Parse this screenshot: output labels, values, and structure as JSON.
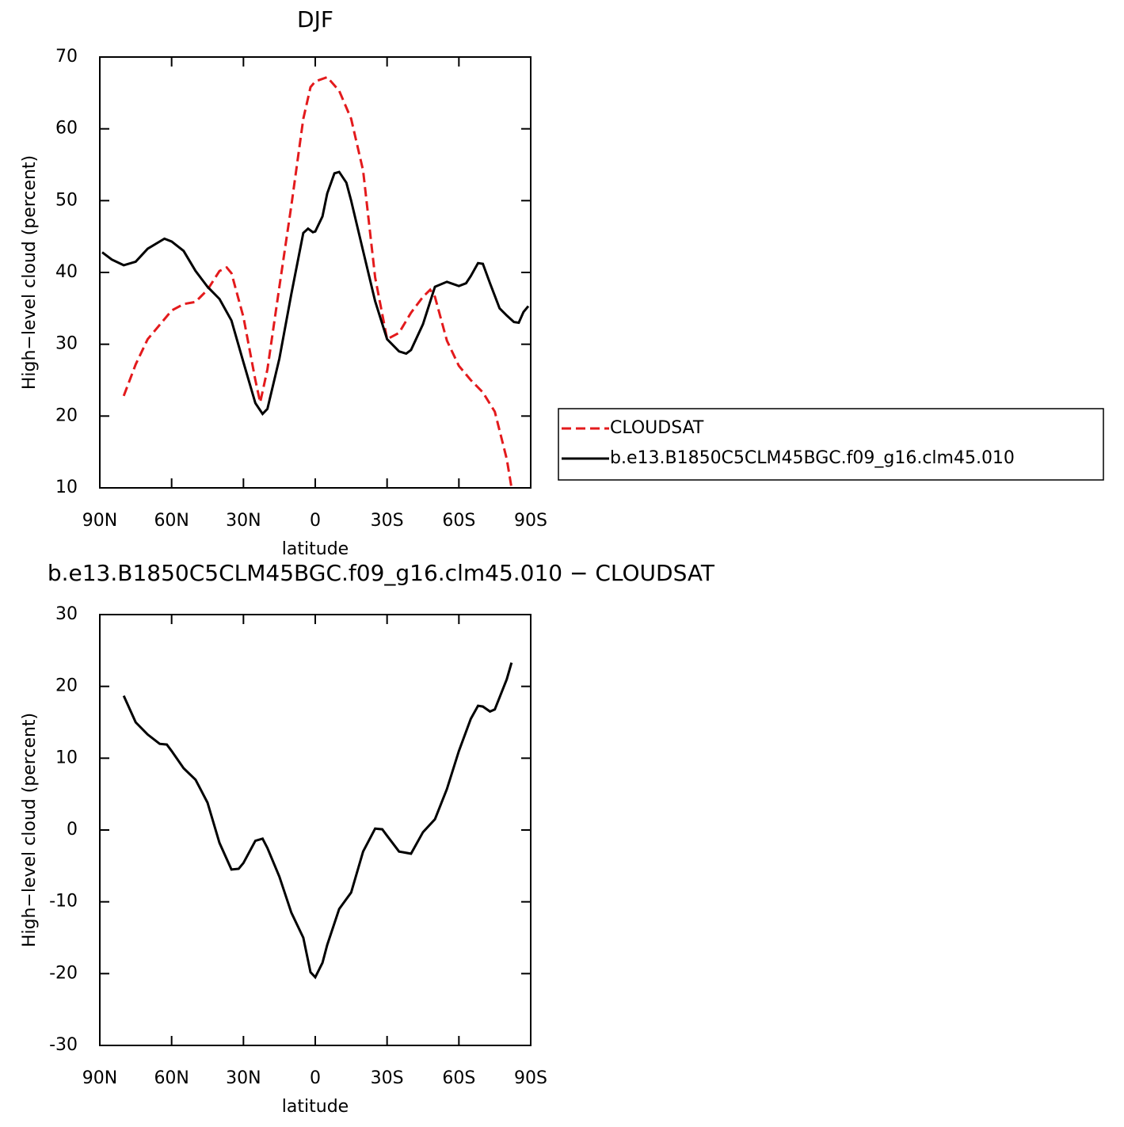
{
  "chart_data": [
    {
      "type": "line",
      "title": "DJF",
      "xlabel": "latitude",
      "ylabel": "High−level cloud (percent)",
      "xlim": [
        90,
        -90
      ],
      "xticks": [
        {
          "value": 90,
          "label": "90N"
        },
        {
          "value": 60,
          "label": "60N"
        },
        {
          "value": 30,
          "label": "30N"
        },
        0,
        {
          "value": -30,
          "label": "30S"
        },
        {
          "value": -60,
          "label": "60S"
        },
        {
          "value": -90,
          "label": "90S"
        }
      ],
      "ylim": [
        10,
        70
      ],
      "yticks": [
        10,
        20,
        30,
        40,
        50,
        60,
        70
      ],
      "series": [
        {
          "name": "CLOUDSAT",
          "color": "#e31a1c",
          "dash": true,
          "x": [
            80,
            75,
            70,
            65,
            60,
            55,
            50,
            45,
            40,
            37,
            35,
            30,
            25,
            23,
            20,
            15,
            10,
            5,
            2,
            0,
            -5,
            -10,
            -15,
            -20,
            -25,
            -30,
            -35,
            -40,
            -45,
            -48,
            -50,
            -55,
            -60,
            -65,
            -70,
            -75,
            -80,
            -82
          ],
          "values": [
            22.8,
            27.2,
            30.7,
            32.7,
            34.7,
            35.6,
            35.9,
            37.6,
            40.2,
            40.7,
            39.9,
            33.8,
            25.0,
            21.9,
            26.5,
            38.0,
            49.3,
            61.4,
            65.8,
            66.6,
            67.2,
            65.3,
            61.4,
            54.2,
            39.3,
            30.7,
            31.6,
            34.4,
            36.6,
            37.6,
            36.6,
            30.5,
            27.0,
            25.0,
            23.3,
            20.6,
            14.0,
            10.0
          ]
        },
        {
          "name": "b.e13.B1850C5CLM45BGC.f09_g16.clm45.010",
          "color": "#000000",
          "dash": false,
          "x": [
            89,
            85,
            80,
            75,
            70,
            63,
            60,
            55,
            50,
            45,
            40,
            35,
            30,
            25,
            22,
            20,
            15,
            10,
            5,
            3,
            1,
            0,
            -3,
            -5,
            -8,
            -10,
            -13,
            -15,
            -20,
            -25,
            -30,
            -35,
            -38,
            -40,
            -45,
            -50,
            -55,
            -60,
            -63,
            -65,
            -68,
            -70,
            -73,
            -77,
            -80,
            -83,
            -85,
            -87,
            -89
          ],
          "values": [
            42.8,
            41.8,
            41.0,
            41.5,
            43.3,
            44.7,
            44.3,
            43.0,
            40.2,
            38.0,
            36.3,
            33.3,
            27.5,
            21.8,
            20.3,
            21.0,
            28.0,
            37.0,
            45.5,
            46.1,
            45.6,
            45.7,
            47.8,
            51.0,
            53.8,
            54.0,
            52.5,
            50.0,
            43.0,
            36.0,
            30.7,
            29.0,
            28.7,
            29.2,
            32.8,
            38.0,
            38.7,
            38.1,
            38.5,
            39.5,
            41.3,
            41.2,
            38.5,
            35.0,
            34.0,
            33.1,
            33.0,
            34.5,
            35.3
          ]
        }
      ]
    },
    {
      "type": "line",
      "title": "b.e13.B1850C5CLM45BGC.f09_g16.clm45.010 − CLOUDSAT",
      "xlabel": "latitude",
      "ylabel": "High−level cloud (percent)",
      "xlim": [
        90,
        -90
      ],
      "xticks": [
        {
          "value": 90,
          "label": "90N"
        },
        {
          "value": 60,
          "label": "60N"
        },
        {
          "value": 30,
          "label": "30N"
        },
        0,
        {
          "value": -30,
          "label": "30S"
        },
        {
          "value": -60,
          "label": "60S"
        },
        {
          "value": -90,
          "label": "90S"
        }
      ],
      "ylim": [
        -30,
        30
      ],
      "yticks": [
        -30,
        -20,
        -10,
        0,
        10,
        20,
        30
      ],
      "series": [
        {
          "color": "#000000",
          "dash": false,
          "x": [
            80,
            75,
            70,
            65,
            62,
            60,
            55,
            50,
            45,
            40,
            35,
            32,
            30,
            25,
            22,
            20,
            15,
            10,
            5,
            2,
            0,
            -3,
            -5,
            -10,
            -15,
            -20,
            -25,
            -28,
            -30,
            -35,
            -40,
            -45,
            -50,
            -55,
            -60,
            -65,
            -68,
            -70,
            -73,
            -75,
            -80,
            -82
          ],
          "values": [
            18.7,
            15.0,
            13.3,
            12.0,
            11.9,
            11.0,
            8.6,
            7.0,
            3.8,
            -1.8,
            -5.5,
            -5.4,
            -4.6,
            -1.5,
            -1.2,
            -2.5,
            -6.5,
            -11.5,
            -15.0,
            -19.8,
            -20.5,
            -18.5,
            -16.0,
            -11.0,
            -8.7,
            -3.0,
            0.2,
            0.1,
            -0.8,
            -3.0,
            -3.3,
            -0.3,
            1.5,
            5.7,
            11.0,
            15.5,
            17.3,
            17.2,
            16.5,
            16.8,
            21.0,
            23.3
          ]
        }
      ]
    }
  ]
}
